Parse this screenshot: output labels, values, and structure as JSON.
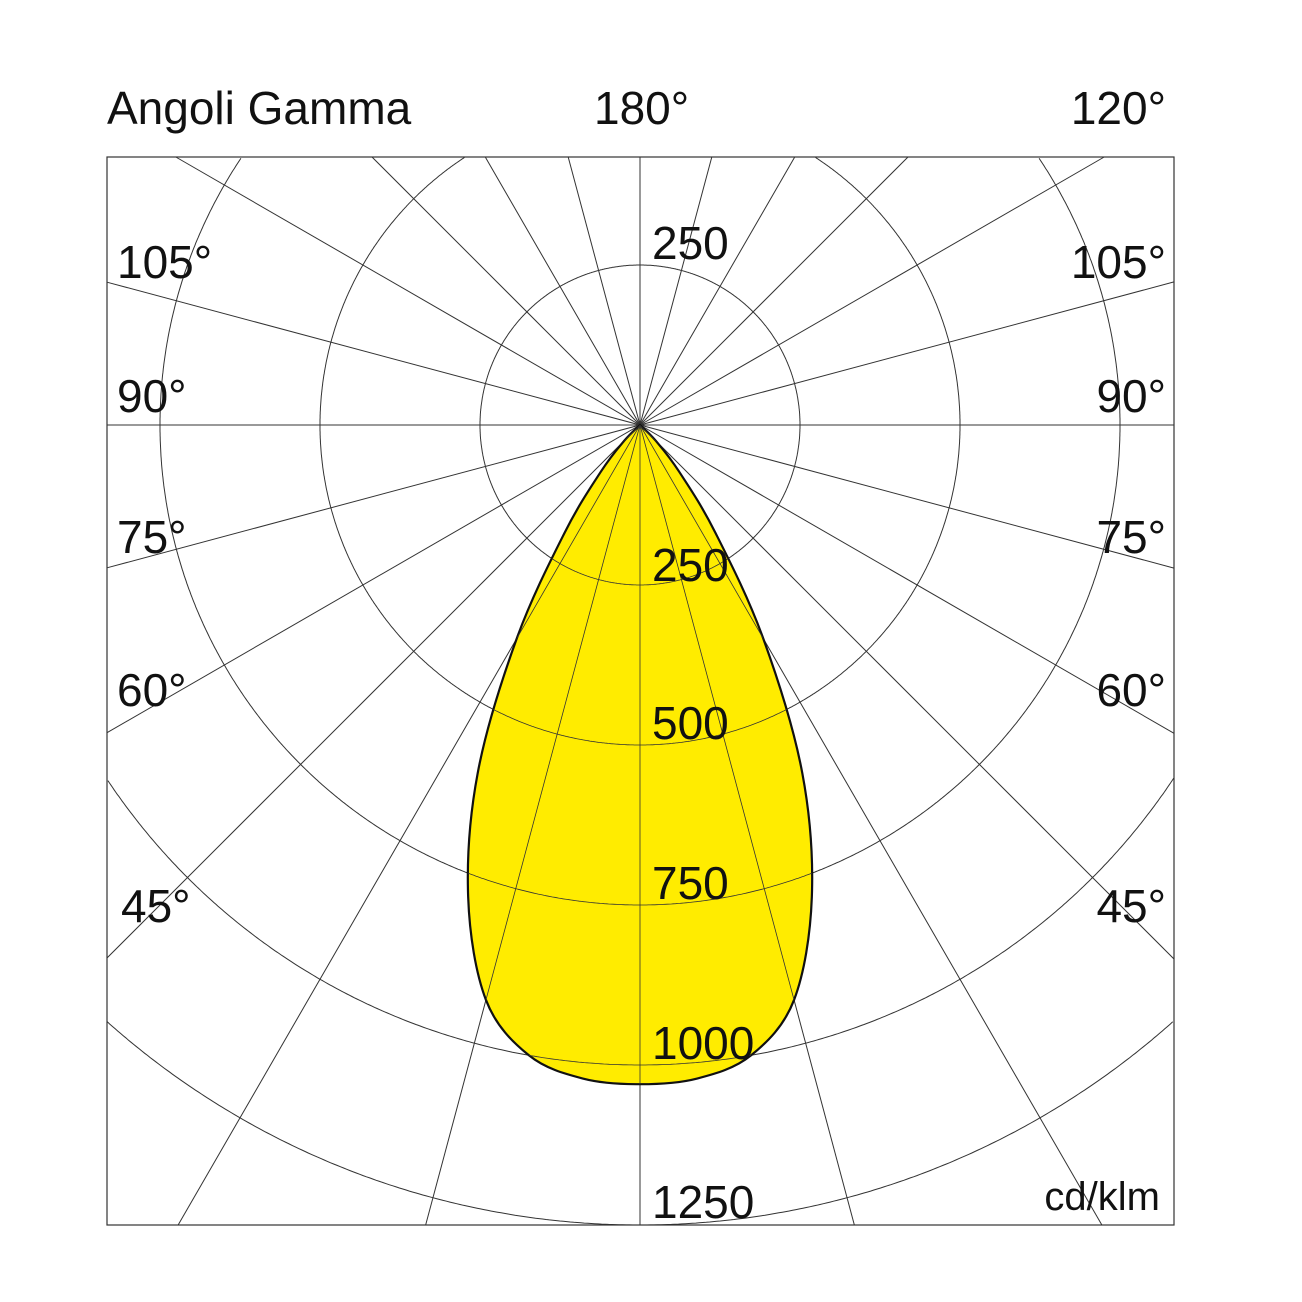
{
  "chart_data": {
    "type": "polar",
    "title": "Angoli Gamma",
    "unit": "cd/klm",
    "angle_labels_top": {
      "center": "180°",
      "right": "120°"
    },
    "angle_labels_left": [
      "105°",
      "90°",
      "75°",
      "60°",
      "45°"
    ],
    "angle_labels_right": [
      "105°",
      "90°",
      "75°",
      "60°",
      "45°"
    ],
    "radial_ticks": [
      250,
      500,
      750,
      1000,
      1250
    ],
    "radial_tick_labels": {
      "upper": "250",
      "lower": [
        "250",
        "500",
        "750",
        "1000",
        "1250"
      ]
    },
    "radial_lines_step_deg": 15,
    "rmax": 1250,
    "grid": true,
    "symmetric": true,
    "series": [
      {
        "angles_deg": [
          0,
          5,
          10,
          15,
          20,
          25,
          30,
          35,
          40,
          45,
          50
        ],
        "values": [
          1030,
          1025,
          1000,
          930,
          785,
          600,
          385,
          205,
          95,
          35,
          0
        ]
      }
    ],
    "fill_color": "#ffec00",
    "line_color": "#111111"
  }
}
